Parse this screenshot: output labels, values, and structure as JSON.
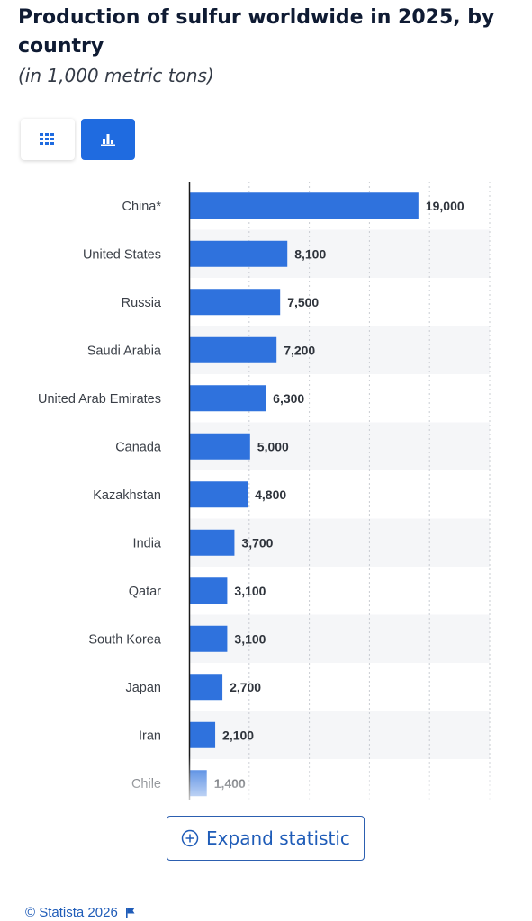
{
  "header": {
    "title": "Production of sulfur worldwide in 2025, by country",
    "subtitle": "(in 1,000 metric tons)"
  },
  "toolbar": {
    "table_view_icon": "grid-icon",
    "chart_view_icon": "bar-chart-icon",
    "active_view": "chart"
  },
  "chart_data": {
    "type": "bar",
    "orientation": "horizontal",
    "categories": [
      "China*",
      "United States",
      "Russia",
      "Saudi Arabia",
      "United Arab Emirates",
      "Canada",
      "Kazakhstan",
      "India",
      "Qatar",
      "South Korea",
      "Japan",
      "Iran",
      "Chile"
    ],
    "values": [
      19000,
      8100,
      7500,
      7200,
      6300,
      5000,
      4800,
      3700,
      3100,
      3100,
      2700,
      2100,
      1400
    ],
    "value_labels": [
      "19,000",
      "8,100",
      "7,500",
      "7,200",
      "6,300",
      "5,000",
      "4,800",
      "3,700",
      "3,100",
      "3,100",
      "2,700",
      "2,100",
      "1,400"
    ],
    "xlim": [
      0,
      25000
    ],
    "grid": true,
    "bar_color": "#2f72dd"
  },
  "expand": {
    "label": "Expand statistic",
    "icon": "plus-circle-icon"
  },
  "footer": {
    "copyright": "© Statista 2026",
    "icon": "flag-icon"
  }
}
